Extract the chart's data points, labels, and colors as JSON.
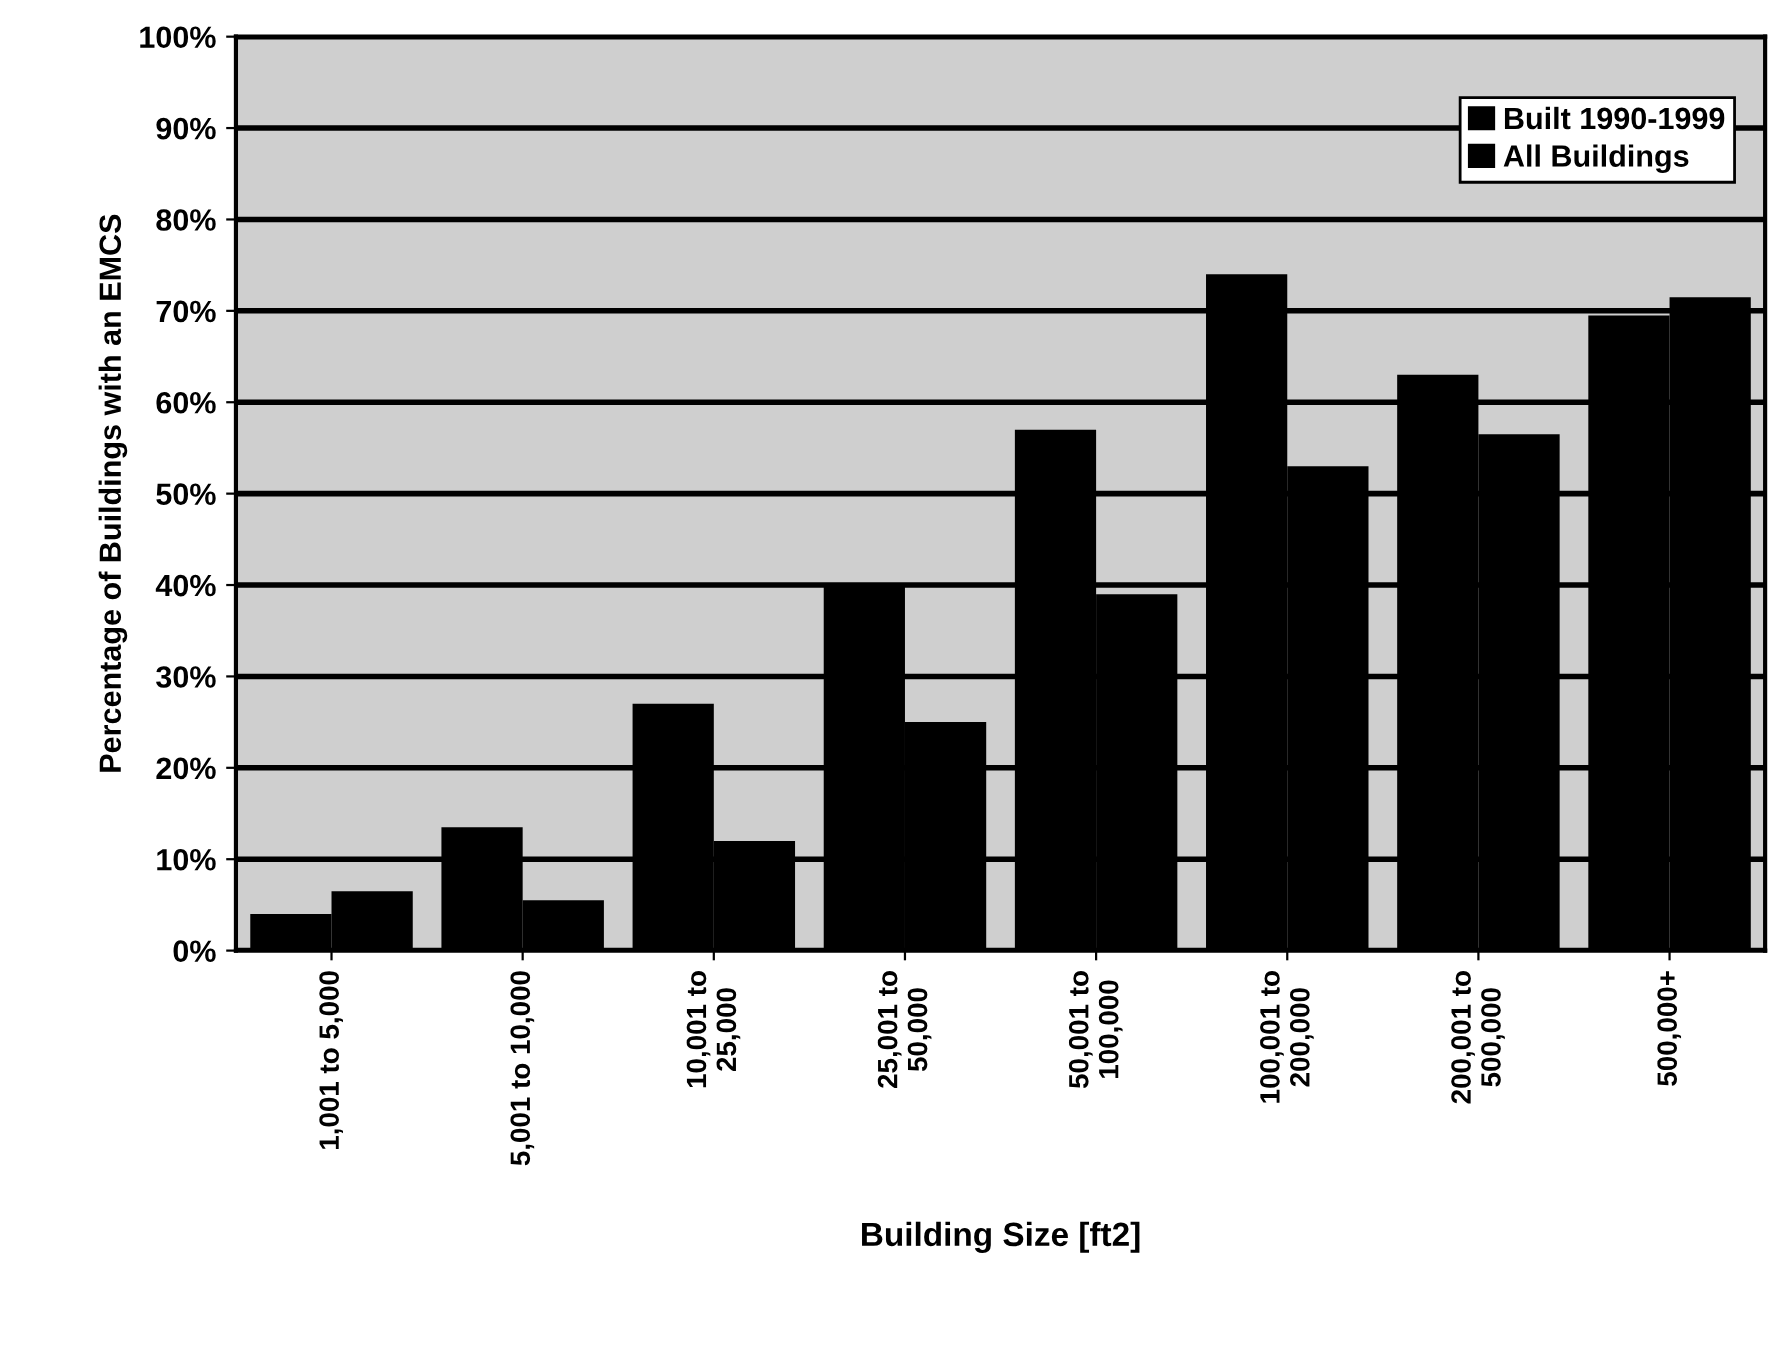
{
  "chart_data": {
    "type": "bar",
    "xlabel": "Building Size [ft2]",
    "ylabel": "Percentage of Buildings with an EMCS",
    "categories": [
      "1,001 to 5,000",
      "5,001 to 10,000",
      "10,001 to\n25,000",
      "25,001 to\n50,000",
      "50,001 to\n100,000",
      "100,001 to\n200,000",
      "200,001 to\n500,000",
      "500,000+"
    ],
    "series": [
      {
        "name": "Built 1990-1999",
        "color": "#000000",
        "values": [
          4,
          13.5,
          27,
          40,
          57,
          74,
          63,
          69.5
        ]
      },
      {
        "name": "All Buildings",
        "color": "#000000",
        "values": [
          6.5,
          5.5,
          12,
          25,
          39,
          53,
          56.5,
          71.5
        ]
      }
    ],
    "ylim": [
      0,
      100
    ],
    "yticks": [
      {
        "value": 0,
        "label": "0%"
      },
      {
        "value": 10,
        "label": "10%"
      },
      {
        "value": 20,
        "label": "20%"
      },
      {
        "value": 30,
        "label": "30%"
      },
      {
        "value": 40,
        "label": "40%"
      },
      {
        "value": 50,
        "label": "50%"
      },
      {
        "value": 60,
        "label": "60%"
      },
      {
        "value": 70,
        "label": "70%"
      },
      {
        "value": 80,
        "label": "80%"
      },
      {
        "value": 90,
        "label": "90%"
      },
      {
        "value": 100,
        "label": "100%"
      }
    ],
    "grid": "y",
    "legend": "top right"
  }
}
